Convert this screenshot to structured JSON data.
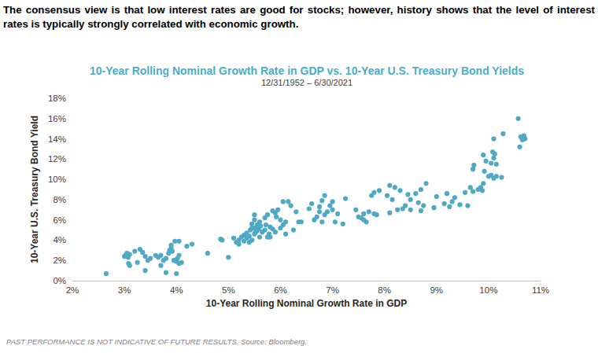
{
  "chart_data": {
    "type": "scatter",
    "header": "The consensus view is that low interest rates are good for stocks; however, history shows that the level of interest rates is typically strongly correlated with economic growth.",
    "title": "10-Year Rolling Nominal Growth Rate in GDP vs. 10-Year U.S. Treasury Bond Yields",
    "subtitle": "12/31/1952 – 6/30/2021",
    "x_label": "10-Year Rolling Nominal Growth Rate in GDP",
    "y_label": "10-Year U.S. Treasury Bond Yield",
    "footer": "PAST PERFORMANCE IS NOT INDICATIVE OF FUTURE RESULTS. Source: Bloomberg.",
    "color": "#4fa9c3",
    "marker": "circle",
    "grid": false,
    "xlim": [
      2,
      11
    ],
    "ylim": [
      0,
      18
    ],
    "xticks": [
      {
        "value": 2,
        "label": "2%"
      },
      {
        "value": 3,
        "label": "3%"
      },
      {
        "value": 4,
        "label": "4%"
      },
      {
        "value": 5,
        "label": "5%"
      },
      {
        "value": 6,
        "label": "6%"
      },
      {
        "value": 7,
        "label": "7%"
      },
      {
        "value": 8,
        "label": "8%"
      },
      {
        "value": 9,
        "label": "9%"
      },
      {
        "value": 10,
        "label": "10%"
      },
      {
        "value": 11,
        "label": "11%"
      }
    ],
    "yticks": [
      {
        "value": 0,
        "label": "0%"
      },
      {
        "value": 2,
        "label": "2%"
      },
      {
        "value": 4,
        "label": "4%"
      },
      {
        "value": 6,
        "label": "6%"
      },
      {
        "value": 8,
        "label": "8%"
      },
      {
        "value": 10,
        "label": "10%"
      },
      {
        "value": 12,
        "label": "12%"
      },
      {
        "value": 14,
        "label": "14%"
      },
      {
        "value": 16,
        "label": "16%"
      },
      {
        "value": 18,
        "label": "18%"
      }
    ],
    "x": [
      2.65,
      3.0,
      3.02,
      3.05,
      3.07,
      3.08,
      3.1,
      3.1,
      3.05,
      3.2,
      3.25,
      3.3,
      3.35,
      3.4,
      3.4,
      3.45,
      3.5,
      3.6,
      3.65,
      3.7,
      3.7,
      3.75,
      3.8,
      3.8,
      3.85,
      3.87,
      3.9,
      3.9,
      3.92,
      3.95,
      3.97,
      4.0,
      4.0,
      4.02,
      4.05,
      4.05,
      4.05,
      4.1,
      4.2,
      4.3,
      4.6,
      4.85,
      4.88,
      5.0,
      5.1,
      5.15,
      5.2,
      5.2,
      5.25,
      5.3,
      5.3,
      5.35,
      5.35,
      5.4,
      5.4,
      5.42,
      5.45,
      5.45,
      5.45,
      5.5,
      5.5,
      5.5,
      5.5,
      5.52,
      5.55,
      5.55,
      5.58,
      5.6,
      5.6,
      5.62,
      5.65,
      5.7,
      5.7,
      5.72,
      5.75,
      5.75,
      5.78,
      5.8,
      5.8,
      5.85,
      5.85,
      5.9,
      5.9,
      5.92,
      5.95,
      6.0,
      6.0,
      6.05,
      6.05,
      6.1,
      6.1,
      6.15,
      6.2,
      6.25,
      6.3,
      6.35,
      6.4,
      6.55,
      6.6,
      6.65,
      6.7,
      6.75,
      6.75,
      6.8,
      6.8,
      6.85,
      6.85,
      6.9,
      6.95,
      7.0,
      7.0,
      7.05,
      7.1,
      7.2,
      7.25,
      7.45,
      7.5,
      7.55,
      7.6,
      7.6,
      7.65,
      7.7,
      7.75,
      7.8,
      7.8,
      7.85,
      7.9,
      8.05,
      8.1,
      8.1,
      8.15,
      8.2,
      8.25,
      8.3,
      8.35,
      8.4,
      8.45,
      8.5,
      8.5,
      8.6,
      8.65,
      8.7,
      8.7,
      8.75,
      8.8,
      8.95,
      9.0,
      9.15,
      9.2,
      9.25,
      9.3,
      9.35,
      9.45,
      9.55,
      9.6,
      9.65,
      9.7,
      9.7,
      9.72,
      9.8,
      9.85,
      9.88,
      9.9,
      9.9,
      9.92,
      9.95,
      10.0,
      10.05,
      10.05,
      10.08,
      10.1,
      10.1,
      10.1,
      10.12,
      10.15,
      10.15,
      10.25,
      10.28,
      10.57,
      10.6,
      10.62,
      10.65,
      10.68,
      10.7
    ],
    "values": [
      0.7,
      2.4,
      2.5,
      2.7,
      2.3,
      1.7,
      1.5,
      2.6,
      2.5,
      2.9,
      1.8,
      3.1,
      2.8,
      2.4,
      1.0,
      2.0,
      2.2,
      2.5,
      2.3,
      2.5,
      1.5,
      2.0,
      2.2,
      0.8,
      2.7,
      3.0,
      3.2,
      3.5,
      2.9,
      2.0,
      3.9,
      1.9,
      0.7,
      2.2,
      2.5,
      3.9,
      1.7,
      1.8,
      3.4,
      3.6,
      2.7,
      4.1,
      4.0,
      2.3,
      4.2,
      3.8,
      4.0,
      3.6,
      4.3,
      4.5,
      3.9,
      4.2,
      4.7,
      4.4,
      3.8,
      5.0,
      5.2,
      4.0,
      5.6,
      6.0,
      6.5,
      5.2,
      4.6,
      4.8,
      5.5,
      4.9,
      5.1,
      5.8,
      4.3,
      5.4,
      4.8,
      5.0,
      6.2,
      5.5,
      4.3,
      6.5,
      4.6,
      5.3,
      4.3,
      6.9,
      5.1,
      6.7,
      4.8,
      6.3,
      7.0,
      5.2,
      6.0,
      7.8,
      5.5,
      4.6,
      5.8,
      7.8,
      7.4,
      5.0,
      6.8,
      5.8,
      5.8,
      7.1,
      7.6,
      6.0,
      6.3,
      6.8,
      7.3,
      7.9,
      5.8,
      8.4,
      6.5,
      6.8,
      7.4,
      7.0,
      7.8,
      5.8,
      6.6,
      5.6,
      8.1,
      7.0,
      6.3,
      6.2,
      6.0,
      6.6,
      5.8,
      6.8,
      8.4,
      6.6,
      8.7,
      6.5,
      8.9,
      8.4,
      9.4,
      6.7,
      8.0,
      9.2,
      7.0,
      8.9,
      7.1,
      7.4,
      8.5,
      7.0,
      8.0,
      8.6,
      7.7,
      9.0,
      6.9,
      7.4,
      9.6,
      7.2,
      8.3,
      7.6,
      8.6,
      7.3,
      7.8,
      8.2,
      7.5,
      8.7,
      7.4,
      9.2,
      8.8,
      11.0,
      11.4,
      9.0,
      9.2,
      8.9,
      9.6,
      12.4,
      10.8,
      11.8,
      10.3,
      10.4,
      11.6,
      12.7,
      10.1,
      12.1,
      14.0,
      12.5,
      11.5,
      10.3,
      10.2,
      14.5,
      16.0,
      13.2,
      14.2,
      13.9,
      14.3,
      14.0
    ]
  }
}
